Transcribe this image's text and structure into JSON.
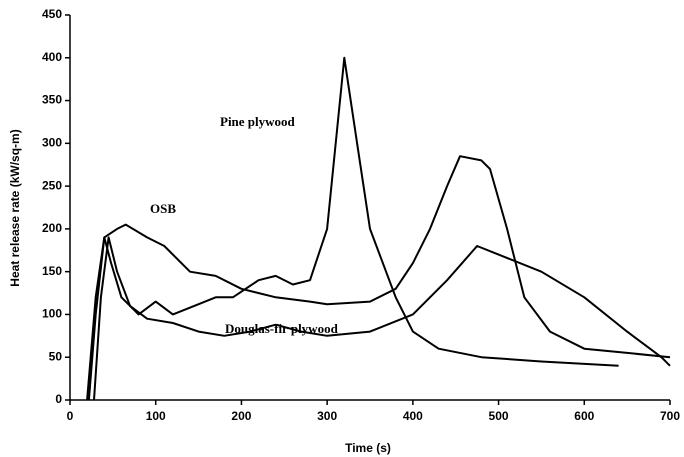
{
  "chart_data": {
    "type": "line",
    "xlabel": "Time (s)",
    "ylabel": "Heat release rate (kW/sq-m)",
    "xlim": [
      0,
      700
    ],
    "xticks": [
      0,
      100,
      200,
      300,
      400,
      500,
      600,
      700
    ],
    "ylim": [
      0,
      450
    ],
    "yticks": [
      0,
      50,
      100,
      150,
      200,
      250,
      300,
      350,
      400,
      450
    ],
    "series": [
      {
        "name": "Pine plywood",
        "color": "#000000",
        "x": [
          20,
          30,
          40,
          48,
          60,
          80,
          100,
          120,
          150,
          170,
          190,
          220,
          240,
          260,
          280,
          300,
          310,
          320,
          335,
          350,
          380,
          400,
          430,
          480,
          550,
          640
        ],
        "values": [
          0,
          120,
          190,
          160,
          120,
          100,
          115,
          100,
          112,
          120,
          120,
          140,
          145,
          135,
          140,
          200,
          300,
          400,
          300,
          200,
          120,
          80,
          60,
          50,
          45,
          40
        ]
      },
      {
        "name": "OSB",
        "color": "#000000",
        "x": [
          22,
          30,
          40,
          55,
          65,
          90,
          110,
          140,
          170,
          200,
          240,
          280,
          300,
          350,
          380,
          400,
          420,
          440,
          455,
          480,
          490,
          510,
          530,
          560,
          600,
          650,
          700
        ],
        "values": [
          0,
          100,
          190,
          200,
          205,
          190,
          180,
          150,
          145,
          130,
          120,
          115,
          112,
          115,
          130,
          160,
          200,
          250,
          285,
          280,
          270,
          200,
          120,
          80,
          60,
          55,
          50
        ]
      },
      {
        "name": "Douglas-fir plywood",
        "color": "#000000",
        "x": [
          28,
          36,
          45,
          55,
          70,
          90,
          120,
          150,
          180,
          210,
          240,
          270,
          300,
          350,
          400,
          440,
          475,
          500,
          550,
          600,
          650,
          690,
          700
        ],
        "values": [
          0,
          120,
          190,
          150,
          110,
          95,
          90,
          80,
          75,
          80,
          88,
          80,
          75,
          80,
          100,
          140,
          180,
          170,
          150,
          120,
          80,
          50,
          40
        ]
      }
    ]
  }
}
